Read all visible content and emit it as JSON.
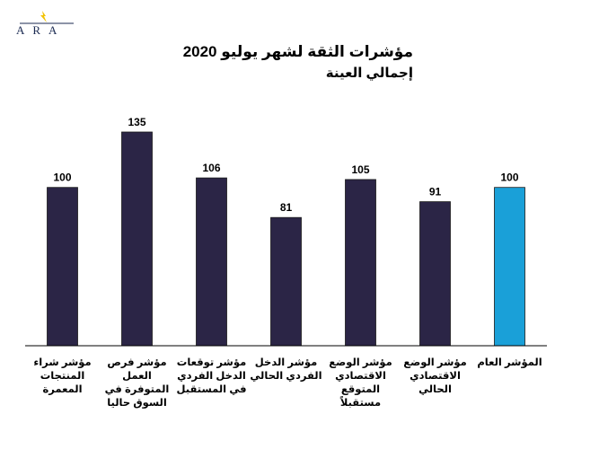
{
  "logo": {
    "text": "ARA",
    "mark_color": "#f2c200"
  },
  "colors": {
    "bar": "#2b2546",
    "highlight_bar": "#1aa0d8",
    "axis": "#000000"
  },
  "chart_data": {
    "type": "bar",
    "title": "مؤشرات الثقة لشهر يوليو 2020",
    "subtitle": "إجمالي العينة",
    "categories": [
      "مؤشر شراء المنتجات المعمرة",
      "مؤشر فرص العمل المتوفرة في السوق حاليا",
      "مؤشر توقعات الدخل الفردي في المستقبل",
      "مؤشر الدخل الفردي الحالي",
      "مؤشر الوضع الاقتصادي المتوقع مستقبلاً",
      "مؤشر الوضع الاقتصادي الحالي",
      "المؤشر العام"
    ],
    "values": [
      100,
      135,
      106,
      81,
      105,
      91,
      100
    ],
    "highlight_index": 6,
    "data_labels": true,
    "ylim": [
      0,
      150
    ],
    "grid": false,
    "xlabel": "",
    "ylabel": ""
  }
}
